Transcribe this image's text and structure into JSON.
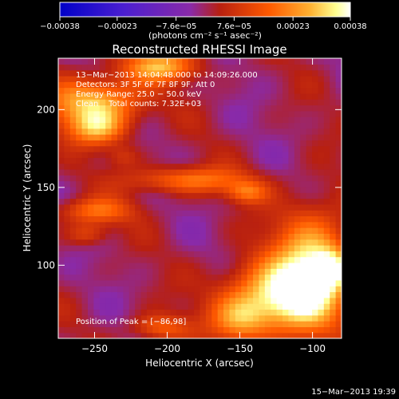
{
  "chart_data": {
    "type": "heatmap",
    "title": "Reconstructed RHESSI Image",
    "xlabel": "Heliocentric X (arcsec)",
    "ylabel": "Heliocentric Y (arcsec)",
    "xlim": [
      -275,
      -80
    ],
    "ylim": [
      53,
      233
    ],
    "x_ticks": [
      -250,
      -200,
      -150,
      -100
    ],
    "y_ticks": [
      100,
      150,
      200
    ],
    "x_tick_labels": [
      "−250",
      "−200",
      "−150",
      "−100"
    ],
    "y_tick_labels": [
      "100",
      "150",
      "200"
    ],
    "colorbar": {
      "range": [
        -0.00038,
        0.00038
      ],
      "ticks": [
        -0.00038,
        -0.00023,
        -7.6e-05,
        7.6e-05,
        0.00023,
        0.00038
      ],
      "tick_labels": [
        "−0.00038",
        "−0.00023",
        "−7.6e−05",
        "7.6e−05",
        "0.00023",
        "0.00038"
      ],
      "units": "(photons cm⁻² s⁻¹ asec⁻²)",
      "colors": [
        "#0000c8",
        "#6a2ad0",
        "#b02018",
        "#ff7a00",
        "#ffff88",
        "#ffffff"
      ]
    },
    "annotations": [
      "13−Mar−2013 14:04:48.000 to 14:09:26.000",
      "Detectors: 3F 5F 6F 7F 8F 9F, Att 0",
      "Energy Range: 25.0 − 50.0 keV",
      "Clean    Total counts: 7.32E+03"
    ],
    "peak_label": "Position of Peak = [−86,98]",
    "peak": [
      -86,
      98
    ],
    "sources": [
      {
        "x": -250,
        "y": 205,
        "sx": 22,
        "sy": 11,
        "amp": 0.0003
      },
      {
        "x": -205,
        "y": 228,
        "sx": 18,
        "sy": 7,
        "amp": 0.00026
      },
      {
        "x": -248,
        "y": 188,
        "sx": 14,
        "sy": 8,
        "amp": 0.00022
      },
      {
        "x": -185,
        "y": 155,
        "sx": 28,
        "sy": 6,
        "amp": 0.0002
      },
      {
        "x": -145,
        "y": 147,
        "sx": 10,
        "sy": 5,
        "amp": 0.00016
      },
      {
        "x": -250,
        "y": 135,
        "sx": 18,
        "sy": 6,
        "amp": 0.00018
      },
      {
        "x": -255,
        "y": 120,
        "sx": 10,
        "sy": 5,
        "amp": 0.00012
      },
      {
        "x": -100,
        "y": 100,
        "sx": 18,
        "sy": 26,
        "amp": 0.0003
      },
      {
        "x": -86,
        "y": 98,
        "sx": 9,
        "sy": 9,
        "amp": 0.00022
      },
      {
        "x": -125,
        "y": 80,
        "sx": 25,
        "sy": 16,
        "amp": 0.00032
      },
      {
        "x": -150,
        "y": 65,
        "sx": 14,
        "sy": 10,
        "amp": 0.00018
      },
      {
        "x": -205,
        "y": 60,
        "sx": 14,
        "sy": 6,
        "amp": 0.00016
      },
      {
        "x": -230,
        "y": 170,
        "sx": 8,
        "sy": 5,
        "amp": 8e-05
      }
    ]
  },
  "footer_timestamp": "15−Mar−2013 19:39"
}
